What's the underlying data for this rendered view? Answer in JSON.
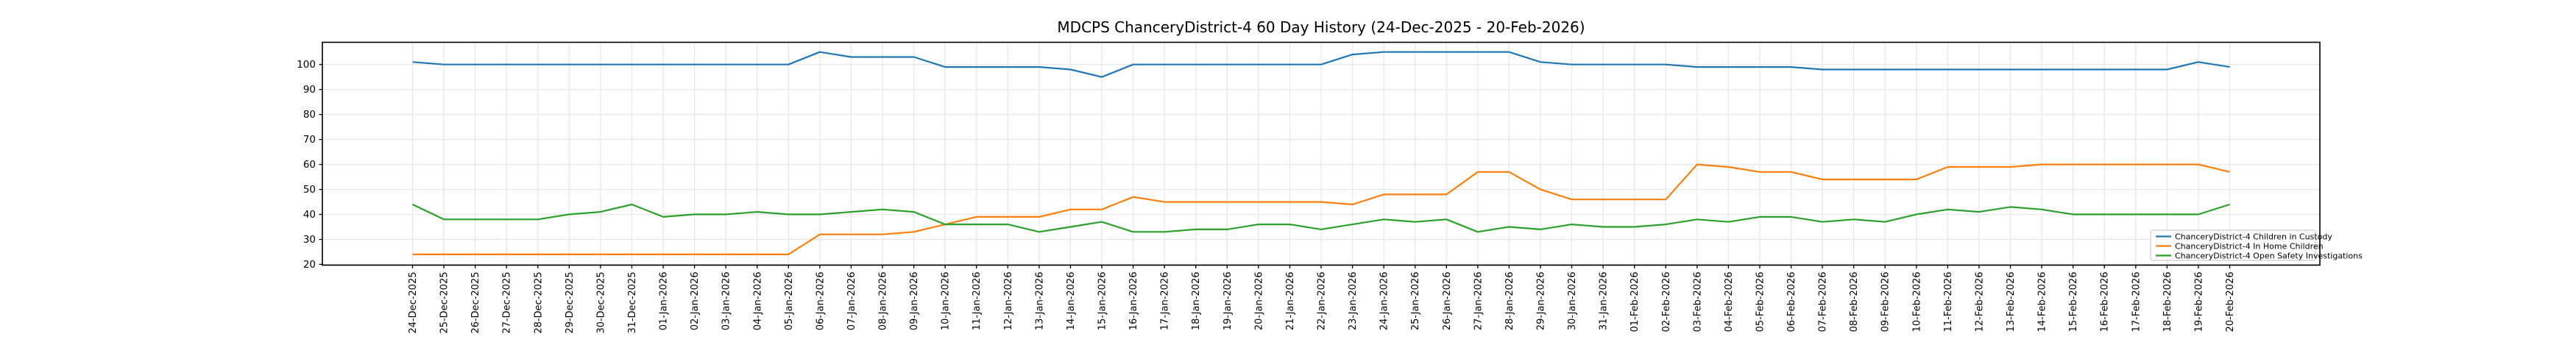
{
  "chart_data": {
    "type": "line",
    "title": "MDCPS ChanceryDistrict-4 60 Day History (24-Dec-2025 - 20-Feb-2026)",
    "xlabel": "",
    "ylabel": "",
    "grid": true,
    "legend_position": "lower right",
    "ylim": [
      19.7,
      108.9
    ],
    "yticks": [
      20,
      30,
      40,
      50,
      60,
      70,
      80,
      90,
      100
    ],
    "x": [
      "24-Dec-2025",
      "25-Dec-2025",
      "26-Dec-2025",
      "27-Dec-2025",
      "28-Dec-2025",
      "29-Dec-2025",
      "30-Dec-2025",
      "31-Dec-2025",
      "01-Jan-2026",
      "02-Jan-2026",
      "03-Jan-2026",
      "04-Jan-2026",
      "05-Jan-2026",
      "06-Jan-2026",
      "07-Jan-2026",
      "08-Jan-2026",
      "09-Jan-2026",
      "10-Jan-2026",
      "11-Jan-2026",
      "12-Jan-2026",
      "13-Jan-2026",
      "14-Jan-2026",
      "15-Jan-2026",
      "16-Jan-2026",
      "17-Jan-2026",
      "18-Jan-2026",
      "19-Jan-2026",
      "20-Jan-2026",
      "21-Jan-2026",
      "22-Jan-2026",
      "23-Jan-2026",
      "24-Jan-2026",
      "25-Jan-2026",
      "26-Jan-2026",
      "27-Jan-2026",
      "28-Jan-2026",
      "29-Jan-2026",
      "30-Jan-2026",
      "31-Jan-2026",
      "01-Feb-2026",
      "02-Feb-2026",
      "03-Feb-2026",
      "04-Feb-2026",
      "05-Feb-2026",
      "06-Feb-2026",
      "07-Feb-2026",
      "08-Feb-2026",
      "09-Feb-2026",
      "10-Feb-2026",
      "11-Feb-2026",
      "12-Feb-2026",
      "13-Feb-2026",
      "14-Feb-2026",
      "15-Feb-2026",
      "16-Feb-2026",
      "17-Feb-2026",
      "18-Feb-2026",
      "19-Feb-2026",
      "20-Feb-2026"
    ],
    "series": [
      {
        "name": "ChanceryDistrict-4 Children in Custody",
        "color": "#1f77b4",
        "values": [
          101,
          100,
          100,
          100,
          100,
          100,
          100,
          100,
          100,
          100,
          100,
          100,
          100,
          105,
          103,
          103,
          103,
          99,
          99,
          99,
          99,
          98,
          95,
          100,
          100,
          100,
          100,
          100,
          100,
          100,
          104,
          105,
          105,
          105,
          105,
          105,
          101,
          100,
          100,
          100,
          100,
          99,
          99,
          99,
          99,
          98,
          98,
          98,
          98,
          98,
          98,
          98,
          98,
          98,
          98,
          98,
          98,
          101,
          99
        ]
      },
      {
        "name": "ChanceryDistrict-4 In Home Children",
        "color": "#ff7f0e",
        "values": [
          24,
          24,
          24,
          24,
          24,
          24,
          24,
          24,
          24,
          24,
          24,
          24,
          24,
          32,
          32,
          32,
          33,
          36,
          39,
          39,
          39,
          42,
          42,
          47,
          45,
          45,
          45,
          45,
          45,
          45,
          44,
          48,
          48,
          48,
          57,
          57,
          50,
          46,
          46,
          46,
          46,
          60,
          59,
          57,
          57,
          54,
          54,
          54,
          54,
          59,
          59,
          59,
          60,
          60,
          60,
          60,
          60,
          60,
          57
        ]
      },
      {
        "name": "ChanceryDistrict-4 Open Safety Investigations",
        "color": "#2ca02c",
        "values": [
          44,
          38,
          38,
          38,
          38,
          40,
          41,
          44,
          39,
          40,
          40,
          41,
          40,
          40,
          41,
          42,
          41,
          36,
          36,
          36,
          33,
          35,
          37,
          33,
          33,
          34,
          34,
          36,
          36,
          34,
          36,
          38,
          37,
          38,
          33,
          35,
          34,
          36,
          35,
          35,
          36,
          38,
          37,
          39,
          39,
          37,
          38,
          37,
          40,
          42,
          41,
          43,
          42,
          40,
          40,
          40,
          40,
          40,
          44
        ]
      }
    ],
    "colors": {
      "frame": "#000000",
      "grid": "#e6e6e6",
      "tick_label": "#000000",
      "legend_border": "#cccccc",
      "legend_background": "#ffffff"
    }
  }
}
